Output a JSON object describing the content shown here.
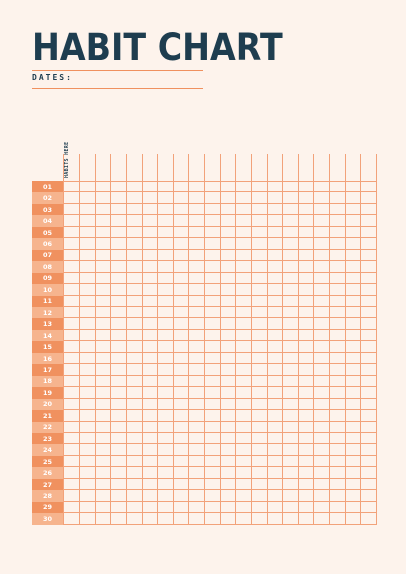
{
  "title": "HABIT CHART",
  "dates_label": "DATES:",
  "habits_header": "HABITS HERE",
  "day_numbers": [
    "01",
    "02",
    "03",
    "04",
    "05",
    "06",
    "07",
    "08",
    "09",
    "10",
    "11",
    "12",
    "13",
    "14",
    "15",
    "16",
    "17",
    "18",
    "19",
    "20",
    "21",
    "22",
    "23",
    "24",
    "25",
    "26",
    "27",
    "28",
    "29",
    "30"
  ],
  "columns_count": 20,
  "colors": {
    "background": "#fdf3ec",
    "title": "#1e3d4f",
    "accent": "#f0915f",
    "accent_light": "#f6b48e",
    "grid_line": "#f2a27a"
  }
}
